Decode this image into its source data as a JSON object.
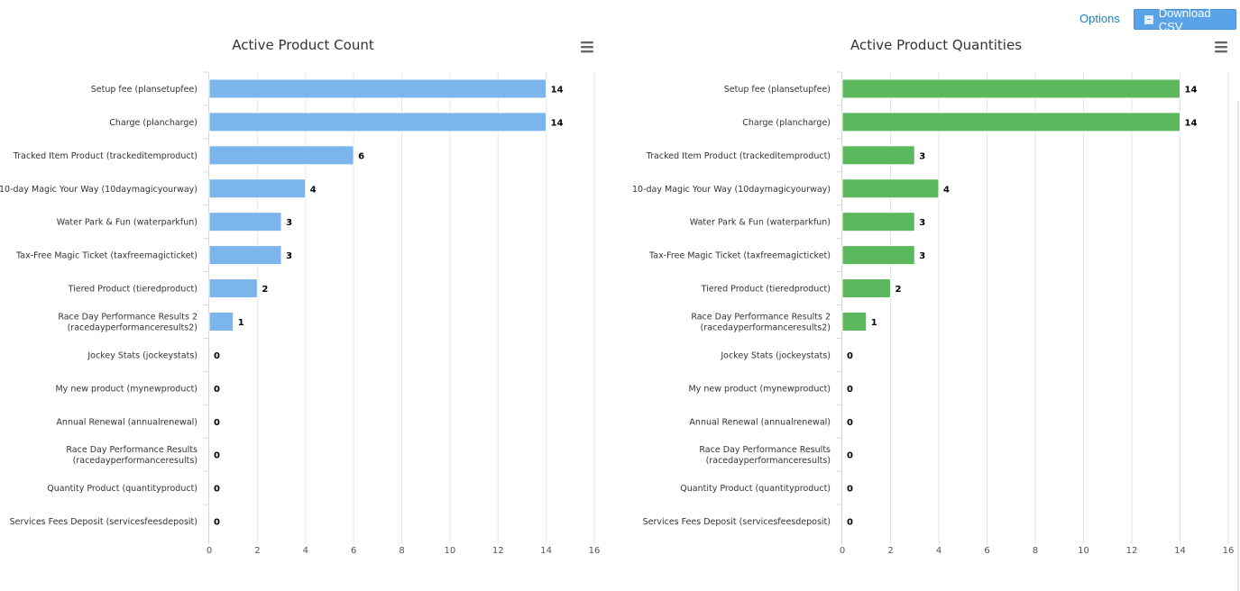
{
  "toolbar": {
    "options_label": "Options",
    "download_label": "Download CSV"
  },
  "colors": {
    "count_bar": "#7cb5ec",
    "quantity_bar": "#5cb85c",
    "link": "#1f7fc0",
    "button": "#5aa3e8"
  },
  "icons": {
    "chart_menu": "hamburger-menu-icon",
    "download": "download-icon"
  },
  "chart_data": [
    {
      "type": "bar",
      "orientation": "horizontal",
      "title": "Active Product Count",
      "categories": [
        "Setup fee (plansetupfee)",
        "Charge (plancharge)",
        "Tracked Item Product (trackeditemproduct)",
        "10-day Magic Your Way (10daymagicyourway)",
        "Water Park & Fun (waterparkfun)",
        "Tax-Free Magic Ticket (taxfreemagicticket)",
        "Tiered Product (tieredproduct)",
        "Race Day Performance Results 2 (racedayperformanceresults2)",
        "Jockey Stats (jockeystats)",
        "My new product (mynewproduct)",
        "Annual Renewal (annualrenewal)",
        "Race Day Performance Results (racedayperformanceresults)",
        "Quantity Product (quantityproduct)",
        "Services Fees Deposit (servicesfeesdeposit)"
      ],
      "category_lines": [
        [
          "Setup fee (plansetupfee)"
        ],
        [
          "Charge (plancharge)"
        ],
        [
          "Tracked Item Product (trackeditemproduct)"
        ],
        [
          "10-day Magic Your Way (10daymagicyourway)"
        ],
        [
          "Water Park & Fun (waterparkfun)"
        ],
        [
          "Tax-Free Magic Ticket (taxfreemagicticket)"
        ],
        [
          "Tiered Product (tieredproduct)"
        ],
        [
          "Race Day Performance Results 2",
          "(racedayperformanceresults2)"
        ],
        [
          "Jockey Stats (jockeystats)"
        ],
        [
          "My new product (mynewproduct)"
        ],
        [
          "Annual Renewal (annualrenewal)"
        ],
        [
          "Race Day Performance Results",
          "(racedayperformanceresults)"
        ],
        [
          "Quantity Product (quantityproduct)"
        ],
        [
          "Services Fees Deposit (servicesfeesdeposit)"
        ]
      ],
      "values": [
        14,
        14,
        6,
        4,
        3,
        3,
        2,
        1,
        0,
        0,
        0,
        0,
        0,
        0
      ],
      "xlim": [
        0,
        16
      ],
      "ticks": [
        0,
        2,
        4,
        6,
        8,
        10,
        12,
        14,
        16
      ],
      "tick_labels": [
        "0",
        "2",
        "4",
        "6",
        "8",
        "10",
        "12",
        "14",
        "16"
      ],
      "grid": true,
      "legend": "none",
      "color": "#7cb5ec"
    },
    {
      "type": "bar",
      "orientation": "horizontal",
      "title": "Active Product Quantities",
      "categories": [
        "Setup fee (plansetupfee)",
        "Charge (plancharge)",
        "Tracked Item Product (trackeditemproduct)",
        "10-day Magic Your Way (10daymagicyourway)",
        "Water Park & Fun (waterparkfun)",
        "Tax-Free Magic Ticket (taxfreemagicticket)",
        "Tiered Product (tieredproduct)",
        "Race Day Performance Results 2 (racedayperformanceresults2)",
        "Jockey Stats (jockeystats)",
        "My new product (mynewproduct)",
        "Annual Renewal (annualrenewal)",
        "Race Day Performance Results (racedayperformanceresults)",
        "Quantity Product (quantityproduct)",
        "Services Fees Deposit (servicesfeesdeposit)"
      ],
      "category_lines": [
        [
          "Setup fee (plansetupfee)"
        ],
        [
          "Charge (plancharge)"
        ],
        [
          "Tracked Item Product (trackeditemproduct)"
        ],
        [
          "10-day Magic Your Way (10daymagicyourway)"
        ],
        [
          "Water Park & Fun (waterparkfun)"
        ],
        [
          "Tax-Free Magic Ticket (taxfreemagicticket)"
        ],
        [
          "Tiered Product (tieredproduct)"
        ],
        [
          "Race Day Performance Results 2",
          "(racedayperformanceresults2)"
        ],
        [
          "Jockey Stats (jockeystats)"
        ],
        [
          "My new product (mynewproduct)"
        ],
        [
          "Annual Renewal (annualrenewal)"
        ],
        [
          "Race Day Performance Results",
          "(racedayperformanceresults)"
        ],
        [
          "Quantity Product (quantityproduct)"
        ],
        [
          "Services Fees Deposit (servicesfeesdeposit)"
        ]
      ],
      "values": [
        14,
        14,
        3,
        4,
        3,
        3,
        2,
        1,
        0,
        0,
        0,
        0,
        0,
        0
      ],
      "xlim": [
        0,
        16
      ],
      "ticks": [
        0,
        2,
        4,
        6,
        8,
        10,
        12,
        14,
        16
      ],
      "tick_labels": [
        "0",
        "2",
        "4",
        "6",
        "8",
        "10",
        "12",
        "14",
        "16"
      ],
      "grid": true,
      "legend": "none",
      "color": "#5cb85c"
    }
  ]
}
